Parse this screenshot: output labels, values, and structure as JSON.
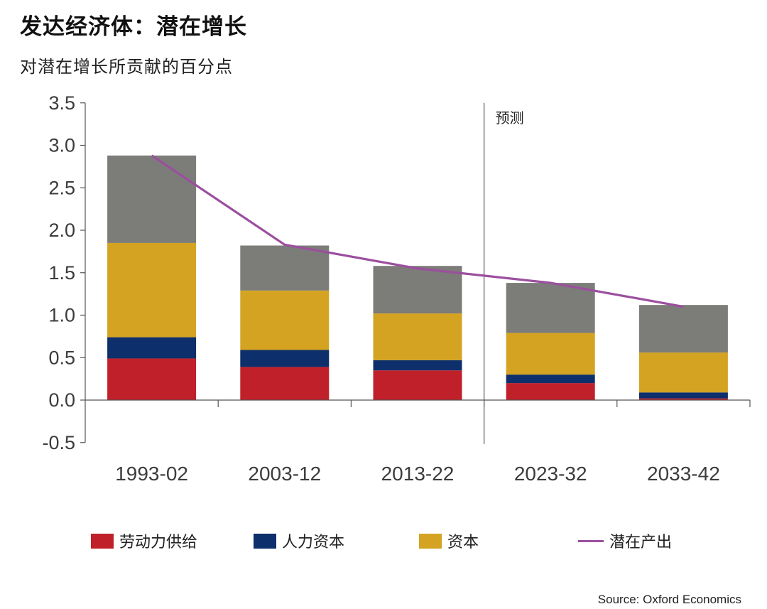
{
  "title": "发达经济体：潜在增长",
  "subtitle": "对潜在增长所贡献的百分点",
  "source": "Source: Oxford Economics",
  "chart_data": {
    "type": "bar",
    "stacked": true,
    "title": "发达经济体：潜在增长",
    "subtitle": "对潜在增长所贡献的百分点",
    "categories": [
      "1993-02",
      "2003-12",
      "2013-22",
      "2023-32",
      "2033-42"
    ],
    "ylim": [
      -0.5,
      3.5
    ],
    "yticks": [
      "3.5",
      "3.0",
      "2.5",
      "2.0",
      "1.5",
      "1.0",
      "0.5",
      "0.0",
      "-0.5"
    ],
    "ytick_values": [
      3.5,
      3.0,
      2.5,
      2.0,
      1.5,
      1.0,
      0.5,
      0.0,
      -0.5
    ],
    "grid": false,
    "legend_position": "bottom",
    "forecast_label": "预测",
    "forecast_starts_at": "2023-32",
    "series": [
      {
        "name": "劳动力供给",
        "kind": "bar",
        "color": "#c0202a",
        "values": [
          0.49,
          0.39,
          0.35,
          0.2,
          0.02
        ]
      },
      {
        "name": "人力资本",
        "kind": "bar",
        "color": "#0d2f6b",
        "values": [
          0.25,
          0.2,
          0.12,
          0.1,
          0.07
        ]
      },
      {
        "name": "资本",
        "kind": "bar",
        "color": "#d4a321",
        "values": [
          1.11,
          0.7,
          0.55,
          0.49,
          0.47
        ]
      },
      {
        "name": "",
        "kind": "bar",
        "color": "#7c7c78",
        "values": [
          1.03,
          0.53,
          0.56,
          0.59,
          0.56
        ]
      },
      {
        "name": "潜在产出",
        "kind": "line",
        "color": "#9b4f9e",
        "values": [
          2.88,
          1.83,
          1.55,
          1.38,
          1.1
        ]
      }
    ]
  }
}
